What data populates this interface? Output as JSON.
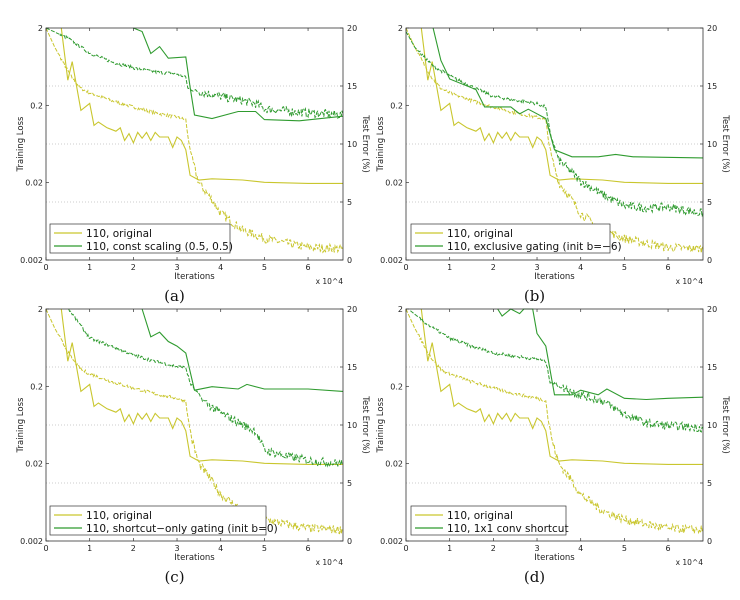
{
  "colors": {
    "original": "#c9c62e",
    "variant": "#2f9b2f",
    "grid": "#999999"
  },
  "chart_data": [
    {
      "type": "line",
      "caption": "(a)",
      "xlabel": "Iterations",
      "x_multiplier": "x 10^4",
      "ylabel_left": "Training Loss",
      "ylabel_right": "Test Error (%)",
      "xlim": [
        0,
        6.8
      ],
      "xticks": [
        0,
        1,
        2,
        3,
        4,
        5,
        6
      ],
      "ylim_left": [
        0.002,
        2
      ],
      "yscale_left": "log",
      "yticks_left": [
        "2",
        "0.2",
        "0.02",
        "0.002"
      ],
      "ylim_right": [
        0,
        20
      ],
      "yticks_right": [
        0,
        5,
        10,
        15,
        20
      ],
      "grid": "horizontal dotted at right-axis 5, 10, 15",
      "legend": {
        "placement": "bottom-left",
        "entries": [
          "110, original",
          "110, const scaling (0.5, 0.5)"
        ]
      },
      "series": [
        {
          "name": "110, original",
          "kind": "test_error",
          "axis": "right",
          "style": "solid",
          "color": "original",
          "x": [
            0.35,
            0.5,
            0.6,
            0.8,
            1.0,
            1.1,
            1.2,
            1.4,
            1.6,
            1.7,
            1.8,
            1.9,
            2.0,
            2.1,
            2.2,
            2.3,
            2.4,
            2.5,
            2.6,
            2.8,
            2.9,
            3.0,
            3.1,
            3.2,
            3.3,
            3.5,
            3.8,
            4.5,
            5.0,
            6.0,
            6.8
          ],
          "y": [
            20,
            15.5,
            17.1,
            12.9,
            13.5,
            11.6,
            11.9,
            11.4,
            11.1,
            11.4,
            10.3,
            10.9,
            10.1,
            11,
            10.5,
            11,
            10.3,
            11,
            10.6,
            10.6,
            9.7,
            10.6,
            10.3,
            9.5,
            7.3,
            6.9,
            7.0,
            6.9,
            6.7,
            6.6,
            6.6
          ]
        },
        {
          "name": "110, original",
          "kind": "training_loss",
          "axis": "left",
          "style": "dashed",
          "color": "original",
          "x": [
            0,
            0.2,
            0.4,
            0.6,
            0.8,
            1,
            1.5,
            2,
            2.5,
            3,
            3.2,
            3.25,
            3.35,
            3.5,
            3.8,
            4,
            4.5,
            5,
            5.5,
            6,
            6.8
          ],
          "y": [
            2,
            1.13,
            0.7,
            0.45,
            0.33,
            0.29,
            0.23,
            0.19,
            0.16,
            0.14,
            0.13,
            0.078,
            0.039,
            0.02,
            0.012,
            0.008,
            0.0049,
            0.0038,
            0.0033,
            0.0029,
            0.0028
          ]
        },
        {
          "name": "110, const scaling (0.5, 0.5)",
          "kind": "test_error",
          "axis": "right",
          "style": "solid",
          "color": "variant",
          "x": [
            2.0,
            2.2,
            2.4,
            2.6,
            2.8,
            3.2,
            3.3,
            3.4,
            3.8,
            4.4,
            4.8,
            5.0,
            5.8,
            6.8
          ],
          "y": [
            20,
            19.7,
            17.8,
            18.4,
            17.4,
            17.5,
            14.9,
            12.5,
            12.2,
            12.8,
            12.8,
            12.1,
            12.0,
            12.4
          ]
        },
        {
          "name": "110, const scaling (0.5, 0.5)",
          "kind": "training_loss",
          "axis": "left",
          "style": "dashed",
          "color": "variant",
          "x": [
            0,
            0.5,
            1,
            1.5,
            2,
            2.5,
            3,
            3.2,
            3.25,
            3.5,
            4,
            4.5,
            4.8,
            5,
            6,
            6.8
          ],
          "y": [
            2,
            1.48,
            0.95,
            0.73,
            0.61,
            0.54,
            0.51,
            0.46,
            0.33,
            0.3,
            0.26,
            0.23,
            0.21,
            0.18,
            0.16,
            0.15
          ]
        }
      ]
    },
    {
      "type": "line",
      "caption": "(b)",
      "xlabel": "Iterations",
      "x_multiplier": "x 10^4",
      "ylabel_left": "Training Loss",
      "ylabel_right": "Test Error (%)",
      "xlim": [
        0,
        6.8
      ],
      "xticks": [
        0,
        1,
        2,
        3,
        4,
        5,
        6
      ],
      "ylim_left": [
        0.002,
        2
      ],
      "yscale_left": "log",
      "yticks_left": [
        "2",
        "0.2",
        "0.02",
        "0.002"
      ],
      "ylim_right": [
        0,
        20
      ],
      "yticks_right": [
        0,
        5,
        10,
        15,
        20
      ],
      "grid": "horizontal dotted at right-axis 5, 10, 15",
      "legend": {
        "placement": "bottom-left",
        "entries": [
          "110, original",
          "110, exclusive gating (init b=−6)"
        ]
      },
      "series": [
        {
          "name": "110, original",
          "kind": "test_error",
          "axis": "right",
          "style": "solid",
          "color": "original",
          "x": [
            0.35,
            0.5,
            0.6,
            0.8,
            1.0,
            1.1,
            1.2,
            1.4,
            1.6,
            1.7,
            1.8,
            1.9,
            2.0,
            2.1,
            2.2,
            2.3,
            2.4,
            2.5,
            2.6,
            2.8,
            2.9,
            3.0,
            3.1,
            3.2,
            3.3,
            3.5,
            3.8,
            4.5,
            5.0,
            6.0,
            6.8
          ],
          "y": [
            20,
            15.5,
            17.1,
            12.9,
            13.5,
            11.6,
            11.9,
            11.4,
            11.1,
            11.4,
            10.3,
            10.9,
            10.1,
            11,
            10.5,
            11,
            10.3,
            11,
            10.6,
            10.6,
            9.7,
            10.6,
            10.3,
            9.5,
            7.3,
            6.9,
            7.0,
            6.9,
            6.7,
            6.6,
            6.6
          ]
        },
        {
          "name": "110, original",
          "kind": "training_loss",
          "axis": "left",
          "style": "dashed",
          "color": "original",
          "x": [
            0,
            0.2,
            0.4,
            0.6,
            0.8,
            1,
            1.5,
            2,
            2.5,
            3,
            3.2,
            3.25,
            3.35,
            3.5,
            3.8,
            4,
            4.5,
            5,
            5.5,
            6,
            6.8
          ],
          "y": [
            2,
            1.13,
            0.7,
            0.45,
            0.33,
            0.29,
            0.23,
            0.19,
            0.16,
            0.14,
            0.13,
            0.078,
            0.039,
            0.02,
            0.012,
            0.008,
            0.0049,
            0.0038,
            0.0033,
            0.0029,
            0.0028
          ]
        },
        {
          "name": "110, exclusive gating (init b=−6)",
          "kind": "test_error",
          "axis": "right",
          "style": "solid",
          "color": "variant",
          "x": [
            0.62,
            0.8,
            1.0,
            1.6,
            1.8,
            2.4,
            2.6,
            2.8,
            3.2,
            3.4,
            3.8,
            4.4,
            4.8,
            5.2,
            6.8
          ],
          "y": [
            20,
            17.2,
            15.6,
            14.7,
            13.2,
            13.2,
            12.6,
            13.0,
            12.2,
            9.5,
            8.9,
            8.9,
            9.1,
            8.9,
            8.8
          ]
        },
        {
          "name": "110, exclusive gating (init b=−6)",
          "kind": "training_loss",
          "axis": "left",
          "style": "dashed",
          "color": "variant",
          "x": [
            0,
            0.2,
            0.6,
            1,
            1.6,
            2,
            3,
            3.2,
            3.3,
            3.5,
            4,
            4.5,
            5,
            5.5,
            6,
            6.8
          ],
          "y": [
            1.8,
            1.13,
            0.66,
            0.48,
            0.33,
            0.26,
            0.21,
            0.19,
            0.087,
            0.039,
            0.021,
            0.014,
            0.01,
            0.0094,
            0.0097,
            0.008
          ]
        }
      ]
    },
    {
      "type": "line",
      "caption": "(c)",
      "xlabel": "Iterations",
      "x_multiplier": "x 10^4",
      "ylabel_left": "Training Loss",
      "ylabel_right": "Test Error (%)",
      "xlim": [
        0,
        6.8
      ],
      "xticks": [
        0,
        1,
        2,
        3,
        4,
        5,
        6
      ],
      "ylim_left": [
        0.002,
        2
      ],
      "yscale_left": "log",
      "yticks_left": [
        "2",
        "0.2",
        "0.02",
        "0.002"
      ],
      "ylim_right": [
        0,
        20
      ],
      "yticks_right": [
        0,
        5,
        10,
        15,
        20
      ],
      "grid": "horizontal dotted at right-axis 5, 10, 15",
      "legend": {
        "placement": "bottom-left",
        "entries": [
          "110, original",
          "110, shortcut−only gating (init b=0)"
        ]
      },
      "series": [
        {
          "name": "110, original",
          "kind": "test_error",
          "axis": "right",
          "style": "solid",
          "color": "original",
          "x": [
            0.35,
            0.5,
            0.6,
            0.8,
            1.0,
            1.1,
            1.2,
            1.4,
            1.6,
            1.7,
            1.8,
            1.9,
            2.0,
            2.1,
            2.2,
            2.3,
            2.4,
            2.5,
            2.6,
            2.8,
            2.9,
            3.0,
            3.1,
            3.2,
            3.3,
            3.5,
            3.8,
            4.5,
            5.0,
            6.0,
            6.8
          ],
          "y": [
            20,
            15.5,
            17.1,
            12.9,
            13.5,
            11.6,
            11.9,
            11.4,
            11.1,
            11.4,
            10.3,
            10.9,
            10.1,
            11,
            10.5,
            11,
            10.3,
            11,
            10.6,
            10.6,
            9.7,
            10.6,
            10.3,
            9.5,
            7.3,
            6.9,
            7.0,
            6.9,
            6.7,
            6.6,
            6.6
          ]
        },
        {
          "name": "110, original",
          "kind": "training_loss",
          "axis": "left",
          "style": "dashed",
          "color": "original",
          "x": [
            0,
            0.2,
            0.4,
            0.6,
            0.8,
            1,
            1.5,
            2,
            2.5,
            3,
            3.2,
            3.25,
            3.35,
            3.5,
            3.8,
            4,
            4.5,
            5,
            5.5,
            6,
            6.8
          ],
          "y": [
            2,
            1.13,
            0.7,
            0.45,
            0.33,
            0.29,
            0.23,
            0.19,
            0.16,
            0.14,
            0.13,
            0.078,
            0.039,
            0.02,
            0.012,
            0.008,
            0.0049,
            0.0038,
            0.0033,
            0.0029,
            0.0028
          ]
        },
        {
          "name": "110, shortcut−only gating (init b=0)",
          "kind": "test_error",
          "axis": "right",
          "style": "solid",
          "color": "variant",
          "x": [
            2.2,
            2.4,
            2.6,
            2.8,
            3.0,
            3.2,
            3.4,
            3.8,
            4.4,
            4.6,
            5.0,
            6.0,
            6.8
          ],
          "y": [
            20,
            17.6,
            18.0,
            17.2,
            16.8,
            16.2,
            13.0,
            13.3,
            13.1,
            13.5,
            13.1,
            13.1,
            12.9
          ]
        },
        {
          "name": "110, shortcut−only gating (init b=0)",
          "kind": "training_loss",
          "axis": "left",
          "style": "dashed",
          "color": "variant",
          "x": [
            0.52,
            1,
            1.5,
            2,
            2.5,
            3,
            3.2,
            3.3,
            3.6,
            4,
            4.5,
            4.8,
            5,
            5.5,
            6,
            6.8
          ],
          "y": [
            2,
            0.84,
            0.66,
            0.51,
            0.42,
            0.36,
            0.35,
            0.22,
            0.13,
            0.09,
            0.064,
            0.053,
            0.03,
            0.025,
            0.022,
            0.02
          ]
        }
      ]
    },
    {
      "type": "line",
      "caption": "(d)",
      "xlabel": "Iterations",
      "x_multiplier": "x 10^4",
      "ylabel_left": "Training Loss",
      "ylabel_right": "Test Error (%)",
      "xlim": [
        0,
        6.8
      ],
      "xticks": [
        0,
        1,
        2,
        3,
        4,
        5,
        6
      ],
      "ylim_left": [
        0.002,
        2
      ],
      "yscale_left": "log",
      "yticks_left": [
        "2",
        "0.2",
        "0.02",
        "0.002"
      ],
      "ylim_right": [
        0,
        20
      ],
      "yticks_right": [
        0,
        5,
        10,
        15,
        20
      ],
      "grid": "horizontal dotted at right-axis 5, 10, 15",
      "legend": {
        "placement": "bottom-left",
        "entries": [
          "110, original",
          "110, 1x1 conv shortcut"
        ]
      },
      "series": [
        {
          "name": "110, original",
          "kind": "test_error",
          "axis": "right",
          "style": "solid",
          "color": "original",
          "x": [
            0.35,
            0.5,
            0.6,
            0.8,
            1.0,
            1.1,
            1.2,
            1.4,
            1.6,
            1.7,
            1.8,
            1.9,
            2.0,
            2.1,
            2.2,
            2.3,
            2.4,
            2.5,
            2.6,
            2.8,
            2.9,
            3.0,
            3.1,
            3.2,
            3.3,
            3.5,
            3.8,
            4.5,
            5.0,
            6.0,
            6.8
          ],
          "y": [
            20,
            15.5,
            17.1,
            12.9,
            13.5,
            11.6,
            11.9,
            11.4,
            11.1,
            11.4,
            10.3,
            10.9,
            10.1,
            11,
            10.5,
            11,
            10.3,
            11,
            10.6,
            10.6,
            9.7,
            10.6,
            10.3,
            9.5,
            7.3,
            6.9,
            7.0,
            6.9,
            6.7,
            6.6,
            6.6
          ]
        },
        {
          "name": "110, original",
          "kind": "training_loss",
          "axis": "left",
          "style": "dashed",
          "color": "original",
          "x": [
            0,
            0.2,
            0.4,
            0.6,
            0.8,
            1,
            1.5,
            2,
            2.5,
            3,
            3.2,
            3.25,
            3.35,
            3.5,
            3.8,
            4,
            4.5,
            5,
            5.5,
            6,
            6.8
          ],
          "y": [
            2,
            1.13,
            0.7,
            0.45,
            0.33,
            0.29,
            0.23,
            0.19,
            0.16,
            0.14,
            0.13,
            0.078,
            0.039,
            0.02,
            0.012,
            0.008,
            0.0049,
            0.0038,
            0.0033,
            0.0029,
            0.0028
          ]
        },
        {
          "name": "110, 1x1 conv shortcut",
          "kind": "test_error",
          "axis": "right",
          "style": "solid",
          "color": "variant",
          "x": [
            2.1,
            2.2,
            2.4,
            2.6,
            2.7,
            2.9,
            3.0,
            3.2,
            3.4,
            3.8,
            4.0,
            4.4,
            4.6,
            5.0,
            5.5,
            6.0,
            6.8
          ],
          "y": [
            20,
            19.4,
            20,
            19.6,
            20,
            20,
            17.9,
            16.8,
            12.6,
            12.6,
            13.0,
            12.6,
            13.1,
            12.3,
            12.2,
            12.3,
            12.4
          ]
        },
        {
          "name": "110, 1x1 conv shortcut",
          "kind": "training_loss",
          "axis": "left",
          "style": "dashed",
          "color": "variant",
          "x": [
            0.1,
            0.5,
            1,
            1.5,
            2,
            2.5,
            3,
            3.2,
            3.3,
            3.6,
            4,
            4.5,
            5,
            5.5,
            6,
            6.8
          ],
          "y": [
            1.9,
            1.25,
            0.84,
            0.66,
            0.54,
            0.49,
            0.45,
            0.42,
            0.23,
            0.19,
            0.155,
            0.13,
            0.087,
            0.067,
            0.062,
            0.058
          ]
        }
      ]
    }
  ]
}
